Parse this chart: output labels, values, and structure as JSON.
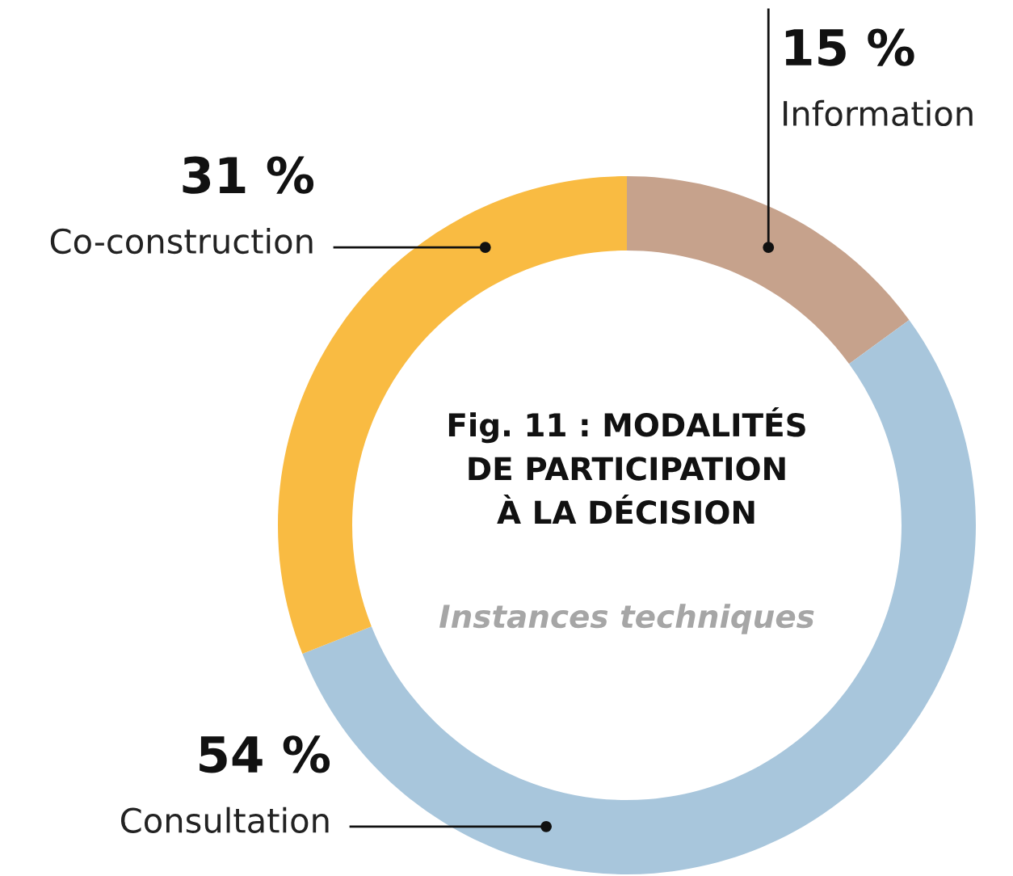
{
  "chart_data": {
    "type": "donut",
    "title": "Fig. 11 : MODALITÉS\nDE PARTICIPATION\nÀ LA DÉCISION",
    "subtitle": "Instances techniques",
    "categories": [
      "Information",
      "Consultation",
      "Co-construction"
    ],
    "values": [
      15,
      54,
      31
    ],
    "colors": [
      "#c6a28c",
      "#a8c6dc",
      "#f9bb42"
    ],
    "value_labels": [
      "15 %",
      "54 %",
      "31 %"
    ]
  }
}
